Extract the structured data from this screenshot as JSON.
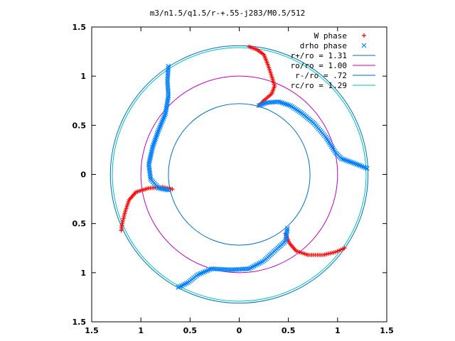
{
  "chart_data": {
    "type": "scatter",
    "title": "m3/n1.5/q1.5/r-+.55-j283/M0.5/512",
    "xlabel": "",
    "ylabel": "",
    "xlim": [
      -1.5,
      1.5
    ],
    "ylim": [
      -1.5,
      1.5
    ],
    "x_ticks": [
      "1.5",
      "1",
      "0.5",
      "0",
      "0.5",
      "1",
      "1.5"
    ],
    "y_ticks": [
      "1.5",
      "1",
      "0.5",
      "0",
      "0.5",
      "1",
      "1.5"
    ],
    "grid": false,
    "legend_position": "top-right",
    "series": [
      {
        "name": "W phase",
        "marker": "plus",
        "color": "#ff0000",
        "points": [
          [
            0.1,
            1.3
          ],
          [
            0.18,
            1.27
          ],
          [
            0.25,
            1.22
          ],
          [
            0.29,
            1.12
          ],
          [
            0.33,
            1.0
          ],
          [
            0.36,
            0.9
          ],
          [
            0.33,
            0.82
          ],
          [
            0.26,
            0.76
          ],
          [
            0.2,
            0.7
          ],
          [
            -0.68,
            -0.15
          ],
          [
            -0.78,
            -0.13
          ],
          [
            -0.92,
            -0.14
          ],
          [
            -1.05,
            -0.18
          ],
          [
            -1.12,
            -0.26
          ],
          [
            -1.16,
            -0.38
          ],
          [
            -1.19,
            -0.5
          ],
          [
            -1.2,
            -0.57
          ],
          [
            0.47,
            -0.6
          ],
          [
            0.51,
            -0.7
          ],
          [
            0.58,
            -0.78
          ],
          [
            0.7,
            -0.82
          ],
          [
            0.85,
            -0.82
          ],
          [
            0.98,
            -0.79
          ],
          [
            1.07,
            -0.75
          ]
        ]
      },
      {
        "name": "drho phase",
        "marker": "cross",
        "color": "#0080ff",
        "points": [
          [
            0.2,
            0.7
          ],
          [
            0.28,
            0.73
          ],
          [
            0.4,
            0.74
          ],
          [
            0.52,
            0.7
          ],
          [
            0.64,
            0.62
          ],
          [
            0.76,
            0.52
          ],
          [
            0.88,
            0.38
          ],
          [
            0.98,
            0.22
          ],
          [
            1.04,
            0.16
          ],
          [
            1.15,
            0.12
          ],
          [
            1.23,
            0.09
          ],
          [
            1.3,
            0.06
          ],
          [
            -0.72,
            1.1
          ],
          [
            -0.73,
            0.95
          ],
          [
            -0.72,
            0.8
          ],
          [
            -0.75,
            0.62
          ],
          [
            -0.82,
            0.45
          ],
          [
            -0.88,
            0.28
          ],
          [
            -0.92,
            0.1
          ],
          [
            -0.9,
            -0.05
          ],
          [
            -0.82,
            -0.14
          ],
          [
            -0.72,
            -0.16
          ],
          [
            0.49,
            -0.55
          ],
          [
            0.47,
            -0.68
          ],
          [
            0.38,
            -0.76
          ],
          [
            0.25,
            -0.88
          ],
          [
            0.1,
            -0.96
          ],
          [
            -0.08,
            -0.97
          ],
          [
            -0.28,
            -0.96
          ],
          [
            -0.42,
            -1.02
          ],
          [
            -0.52,
            -1.1
          ],
          [
            -0.62,
            -1.15
          ]
        ]
      },
      {
        "name": "r+/ro = 1.31",
        "type": "circle",
        "radius": 1.31,
        "color": "#0070c0"
      },
      {
        "name": "ro/ro = 1.00",
        "type": "circle",
        "radius": 1.0,
        "color": "#c000c0"
      },
      {
        "name": "r-/ro = .72",
        "type": "circle",
        "radius": 0.72,
        "color": "#0070c0"
      },
      {
        "name": "rc/ro = 1.29",
        "type": "circle",
        "radius": 1.29,
        "color": "#00c0c0"
      }
    ]
  }
}
